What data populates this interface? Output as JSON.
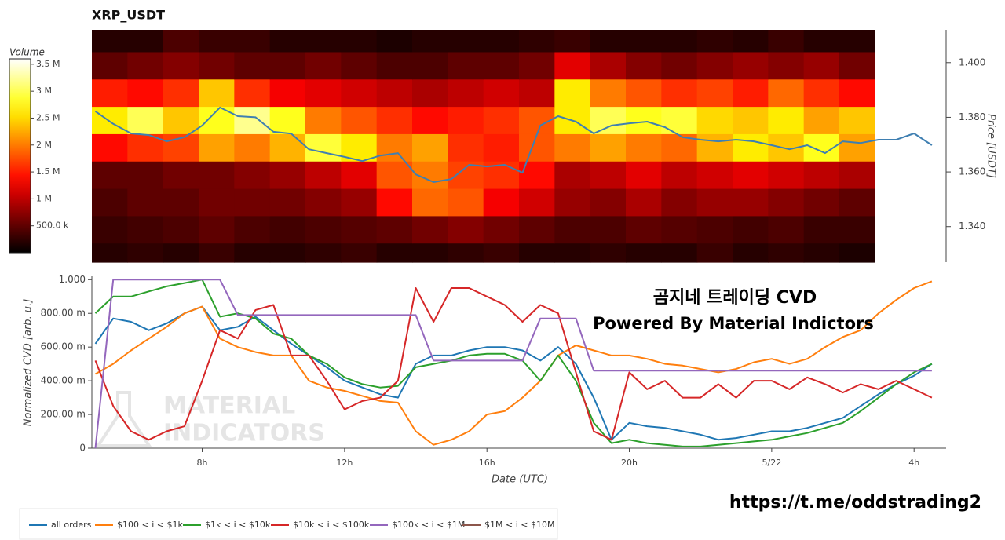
{
  "chart_data": [
    {
      "type": "heatmap",
      "title": "XRP_USDT",
      "xbins": [
        4.9,
        5.9,
        6.9,
        7.9,
        8.9,
        9.9,
        10.9,
        11.9,
        12.9,
        13.9,
        14.9,
        15.9,
        16.9,
        17.9,
        18.9,
        19.9,
        20.9,
        21.9,
        22.9,
        23.9,
        24.9,
        25.9,
        26.9
      ],
      "ybins": [
        1.327,
        1.334,
        1.344,
        1.354,
        1.364,
        1.374,
        1.384,
        1.394,
        1.404,
        1.412
      ],
      "z": [
        [
          200000.0,
          250000.0,
          200000.0,
          300000.0,
          200000.0,
          200000.0,
          250000.0,
          300000.0,
          200000.0,
          200000.0,
          250000.0,
          300000.0,
          200000.0,
          200000.0,
          250000.0,
          200000.0,
          200000.0,
          300000.0,
          200000.0,
          250000.0,
          200000.0,
          150000.0
        ],
        [
          300000.0,
          350000.0,
          400000.0,
          500000.0,
          400000.0,
          350000.0,
          400000.0,
          450000.0,
          500000.0,
          600000.0,
          700000.0,
          600000.0,
          500000.0,
          400000.0,
          400000.0,
          500000.0,
          450000.0,
          400000.0,
          350000.0,
          400000.0,
          300000.0,
          300000.0
        ],
        [
          400000.0,
          500000.0,
          500000.0,
          600000.0,
          600000.0,
          600000.0,
          700000.0,
          800000.0,
          1400000.0,
          1900000.0,
          1800000.0,
          1300000.0,
          1100000.0,
          800000.0,
          700000.0,
          900000.0,
          700000.0,
          800000.0,
          800000.0,
          700000.0,
          600000.0,
          500000.0
        ],
        [
          500000.0,
          500000.0,
          600000.0,
          600000.0,
          700000.0,
          800000.0,
          1000000.0,
          1200000.0,
          1800000.0,
          2000000.0,
          1700000.0,
          1600000.0,
          1400000.0,
          900000.0,
          1000000.0,
          1200000.0,
          1000000.0,
          1100000.0,
          1200000.0,
          1100000.0,
          1000000.0,
          900000.0
        ],
        [
          1400000.0,
          1600000.0,
          1700000.0,
          2200000.0,
          2000000.0,
          2300000.0,
          2900000.0,
          2600000.0,
          2000000.0,
          2200000.0,
          1600000.0,
          1500000.0,
          1800000.0,
          2000000.0,
          2200000.0,
          2000000.0,
          1900000.0,
          2300000.0,
          2600000.0,
          2400000.0,
          2800000.0,
          2200000.0
        ],
        [
          2600000.0,
          3000000.0,
          2400000.0,
          2800000.0,
          3200000.0,
          2800000.0,
          2000000.0,
          1800000.0,
          1600000.0,
          1400000.0,
          1500000.0,
          1600000.0,
          1800000.0,
          2600000.0,
          3000000.0,
          2800000.0,
          2900000.0,
          2500000.0,
          2400000.0,
          2600000.0,
          2200000.0,
          2400000.0
        ],
        [
          1500000.0,
          1400000.0,
          1600000.0,
          2400000.0,
          1600000.0,
          1300000.0,
          1200000.0,
          1100000.0,
          1000000.0,
          900000.0,
          1000000.0,
          1100000.0,
          1000000.0,
          2600000.0,
          2000000.0,
          1800000.0,
          1600000.0,
          1700000.0,
          1500000.0,
          1900000.0,
          1600000.0,
          1400000.0
        ],
        [
          500000.0,
          600000.0,
          700000.0,
          600000.0,
          500000.0,
          500000.0,
          600000.0,
          500000.0,
          400000.0,
          400000.0,
          500000.0,
          500000.0,
          600000.0,
          1200000.0,
          900000.0,
          700000.0,
          600000.0,
          700000.0,
          800000.0,
          700000.0,
          800000.0,
          600000.0
        ],
        [
          200000.0,
          200000.0,
          400000.0,
          300000.0,
          300000.0,
          200000.0,
          200000.0,
          200000.0,
          150000.0,
          200000.0,
          200000.0,
          200000.0,
          250000.0,
          300000.0,
          200000.0,
          200000.0,
          200000.0,
          250000.0,
          200000.0,
          300000.0,
          200000.0,
          200000.0
        ]
      ],
      "colorscale": "hot",
      "zlim": [
        0,
        3600000.0
      ],
      "colorbar_title": "Volume",
      "zticks": [
        {
          "value": 500000.0,
          "label": "500.0 k"
        },
        {
          "value": 1000000.0,
          "label": "1 M"
        },
        {
          "value": 1500000.0,
          "label": "1.5 M"
        },
        {
          "value": 2000000.0,
          "label": "2 M"
        },
        {
          "value": 2500000.0,
          "label": "2.5 M"
        },
        {
          "value": 3000000.0,
          "label": "3 M"
        },
        {
          "value": 3500000.0,
          "label": "3.5 M"
        }
      ],
      "xlim": [
        4.9,
        28.9
      ],
      "y2lim": [
        1.327,
        1.412
      ],
      "y2ticks": [
        {
          "value": 1.34,
          "label": "1.340"
        },
        {
          "value": 1.36,
          "label": "1.360"
        },
        {
          "value": 1.38,
          "label": "1.380"
        },
        {
          "value": 1.4,
          "label": "1.400"
        }
      ],
      "y2label": "Price [USDT]",
      "x": [
        5,
        5.5,
        6,
        6.5,
        7,
        7.5,
        8,
        8.5,
        9,
        9.5,
        10,
        10.5,
        11,
        11.5,
        12,
        12.5,
        13,
        13.5,
        14,
        14.5,
        15,
        15.5,
        16,
        16.5,
        17,
        17.5,
        18,
        18.5,
        19,
        19.5,
        20,
        20.5,
        21,
        21.5,
        22,
        22.5,
        23,
        23.5,
        24,
        24.5,
        25,
        25.5,
        26,
        26.5,
        27,
        27.5,
        28,
        28.5
      ],
      "series": [
        {
          "color": "#3f7fb1",
          "axis": "y2",
          "values": [
            1.3822,
            1.3776,
            1.3741,
            1.3735,
            1.3712,
            1.3727,
            1.377,
            1.3836,
            1.3804,
            1.38,
            1.3747,
            1.374,
            1.3683,
            1.3669,
            1.3655,
            1.364,
            1.366,
            1.3669,
            1.3591,
            1.3563,
            1.3574,
            1.3626,
            1.362,
            1.3626,
            1.3597,
            1.377,
            1.3804,
            1.3784,
            1.3741,
            1.377,
            1.3778,
            1.3784,
            1.3764,
            1.3727,
            1.3718,
            1.3712,
            1.3718,
            1.3712,
            1.3698,
            1.3683,
            1.3698,
            1.3669,
            1.3712,
            1.3706,
            1.3718,
            1.3718,
            1.3741,
            1.3698
          ]
        }
      ]
    },
    {
      "type": "line",
      "xlim": [
        4.9,
        28.9
      ],
      "xticks": [
        {
          "value": 8,
          "label": "8h"
        },
        {
          "value": 12,
          "label": "12h"
        },
        {
          "value": 16,
          "label": "16h"
        },
        {
          "value": 20,
          "label": "20h"
        },
        {
          "value": 24,
          "label": "5/22"
        },
        {
          "value": 28,
          "label": "4h"
        }
      ],
      "xlabel": "Date (UTC)",
      "ylabel": "Normalized CVD [arb. u.]",
      "ylim": [
        0,
        1.02
      ],
      "yticks": [
        0,
        {
          "value": 0.2,
          "label": "200.00 m"
        },
        {
          "value": 0.4,
          "label": "400.00 m"
        },
        {
          "value": 0.6,
          "label": "600.00 m"
        },
        {
          "value": 0.8,
          "label": "800.00 m"
        },
        {
          "value": 1,
          "label": "1.000"
        }
      ],
      "annotations": [
        "곰지네 트레이딩 CVD",
        "Powered By Material Indictors"
      ],
      "x": [
        5,
        5.5,
        6,
        6.5,
        7,
        7.5,
        8,
        8.5,
        9,
        9.5,
        10,
        10.5,
        11,
        11.5,
        12,
        12.5,
        13,
        13.5,
        14,
        14.5,
        15,
        15.5,
        16,
        16.5,
        17,
        17.5,
        18,
        18.5,
        19,
        19.5,
        20,
        20.5,
        21,
        21.5,
        22,
        22.5,
        23,
        23.5,
        24,
        24.5,
        25,
        25.5,
        26,
        26.5,
        27,
        27.5,
        28,
        28.5
      ],
      "series": [
        {
          "name": "all orders",
          "color": "#1f77b4",
          "values": [
            0.62,
            0.77,
            0.75,
            0.7,
            0.74,
            0.8,
            0.84,
            0.7,
            0.72,
            0.78,
            0.7,
            0.62,
            0.55,
            0.48,
            0.4,
            0.36,
            0.32,
            0.3,
            0.5,
            0.55,
            0.55,
            0.58,
            0.6,
            0.6,
            0.58,
            0.52,
            0.6,
            0.5,
            0.3,
            0.05,
            0.15,
            0.13,
            0.12,
            0.1,
            0.08,
            0.05,
            0.06,
            0.08,
            0.1,
            0.1,
            0.12,
            0.15,
            0.18,
            0.25,
            0.32,
            0.38,
            0.43,
            0.5
          ]
        },
        {
          "name": "$100 < i < $1k",
          "color": "#ff7f0e",
          "values": [
            0.44,
            0.5,
            0.58,
            0.65,
            0.72,
            0.8,
            0.84,
            0.65,
            0.6,
            0.57,
            0.55,
            0.55,
            0.4,
            0.36,
            0.34,
            0.31,
            0.28,
            0.27,
            0.1,
            0.02,
            0.05,
            0.1,
            0.2,
            0.22,
            0.3,
            0.4,
            0.55,
            0.61,
            0.58,
            0.55,
            0.55,
            0.53,
            0.5,
            0.49,
            0.47,
            0.45,
            0.47,
            0.51,
            0.53,
            0.5,
            0.53,
            0.6,
            0.66,
            0.7,
            0.8,
            0.88,
            0.95,
            0.99
          ]
        },
        {
          "name": "$1k < i < $10k",
          "color": "#2ca02c",
          "values": [
            0.8,
            0.9,
            0.9,
            0.93,
            0.96,
            0.98,
            1,
            0.78,
            0.8,
            0.77,
            0.68,
            0.65,
            0.55,
            0.5,
            0.42,
            0.38,
            0.36,
            0.37,
            0.48,
            0.5,
            0.52,
            0.55,
            0.56,
            0.56,
            0.52,
            0.4,
            0.55,
            0.4,
            0.15,
            0.03,
            0.05,
            0.03,
            0.02,
            0.01,
            0.01,
            0.02,
            0.03,
            0.04,
            0.05,
            0.07,
            0.09,
            0.12,
            0.15,
            0.22,
            0.3,
            0.38,
            0.45,
            0.5
          ]
        },
        {
          "name": "$10k < i < $100k",
          "color": "#d62728",
          "values": [
            0.52,
            0.25,
            0.1,
            0.05,
            0.1,
            0.13,
            0.4,
            0.7,
            0.65,
            0.82,
            0.85,
            0.55,
            0.55,
            0.4,
            0.23,
            0.28,
            0.3,
            0.4,
            0.95,
            0.75,
            0.95,
            0.95,
            0.9,
            0.85,
            0.75,
            0.85,
            0.8,
            0.45,
            0.1,
            0.05,
            0.45,
            0.35,
            0.4,
            0.3,
            0.3,
            0.38,
            0.3,
            0.4,
            0.4,
            0.35,
            0.42,
            0.38,
            0.33,
            0.38,
            0.35,
            0.4,
            0.35,
            0.3
          ]
        },
        {
          "name": "$100k < i < $1M",
          "color": "#9467bd",
          "values": [
            0,
            1,
            1,
            1,
            1,
            1,
            1,
            1,
            0.79,
            0.79,
            0.79,
            0.79,
            0.79,
            0.79,
            0.79,
            0.79,
            0.79,
            0.79,
            0.79,
            0.52,
            0.52,
            0.52,
            0.52,
            0.52,
            0.52,
            0.77,
            0.77,
            0.77,
            0.46,
            0.46,
            0.46,
            0.46,
            0.46,
            0.46,
            0.46,
            0.46,
            0.46,
            0.46,
            0.46,
            0.46,
            0.46,
            0.46,
            0.46,
            0.46,
            0.46,
            0.46,
            0.46,
            0.46
          ]
        },
        {
          "name": "$1M < i < $10M",
          "color": "#8c564b"
        }
      ]
    }
  ],
  "watermark": [
    "MATERIAL",
    "INDICATORS"
  ],
  "footer_link": "https://t.me/oddstrading2"
}
